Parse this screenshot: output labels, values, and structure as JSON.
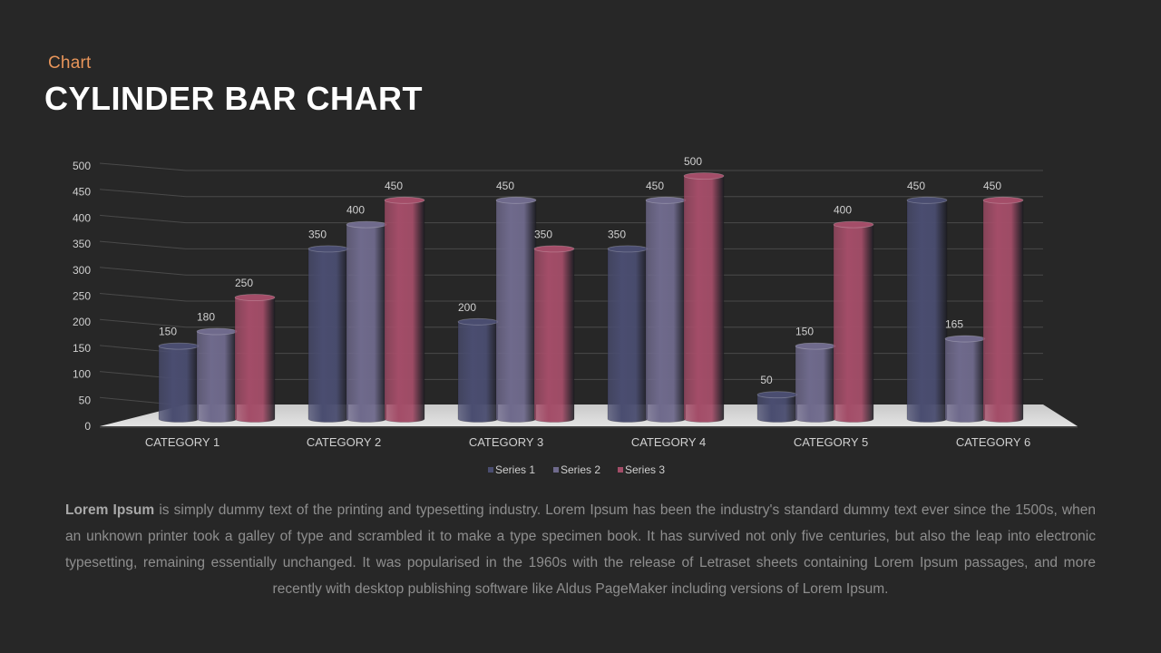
{
  "header": {
    "kicker": "Chart",
    "title": "CYLINDER BAR CHART"
  },
  "body_text": {
    "lead": "Lorem Ipsum",
    "rest": " is simply dummy text of the printing and typesetting industry. Lorem Ipsum has been the industry's standard dummy text ever since the 1500s, when an unknown printer took a galley of type and scrambled it to make a type specimen book. It has survived not only five centuries, but also the leap into electronic typesetting, remaining essentially unchanged. It was popularised in the 1960s with the release of Letraset sheets containing Lorem Ipsum passages, and more recently with desktop publishing software like Aldus PageMaker including versions of Lorem Ipsum."
  },
  "colors": {
    "series_1": "#4a4d70",
    "series_2": "#6f6a8c",
    "series_3": "#a34d68",
    "floor": "#cfcfcf",
    "grid": "#4a4a4a",
    "text": "#d0d0d0"
  },
  "chart_data": {
    "type": "bar",
    "style": "3d-cylinder",
    "categories": [
      "CATEGORY  1",
      "CATEGORY  2",
      "CATEGORY  3",
      "CATEGORY  4",
      "CATEGORY  5",
      "CATEGORY  6"
    ],
    "series": [
      {
        "name": "Series 1",
        "values": [
          150,
          350,
          200,
          350,
          50,
          450
        ]
      },
      {
        "name": "Series 2",
        "values": [
          180,
          400,
          450,
          450,
          150,
          165
        ]
      },
      {
        "name": "Series 3",
        "values": [
          250,
          450,
          350,
          500,
          400,
          450
        ]
      }
    ],
    "yticks": [
      0,
      50,
      100,
      150,
      200,
      250,
      300,
      350,
      400,
      450,
      500
    ],
    "ylim": [
      0,
      500
    ],
    "grid": true,
    "legend": "bottom-center",
    "data_labels": true
  }
}
